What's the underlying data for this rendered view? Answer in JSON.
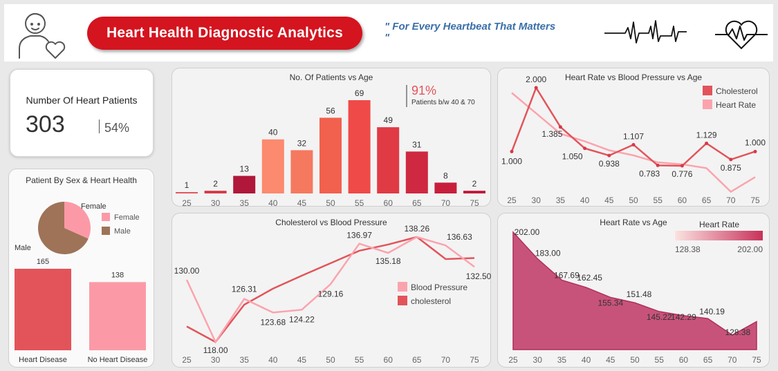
{
  "header": {
    "title": "Heart Health Diagnostic Analytics",
    "tagline": "\" For Every Heartbeat That Matters",
    "tagline_quote": "\""
  },
  "kpi": {
    "label": "Number Of Heart Patients",
    "value": "303",
    "percent": "54%"
  },
  "sex_panel": {
    "title": "Patient By Sex & Heart Health",
    "legend": [
      "Female",
      "Male"
    ],
    "pie_labels": [
      "Female",
      "Male"
    ]
  },
  "colors": {
    "accent": "#d4141f",
    "female": "#fb9aa6",
    "male": "#9e7358",
    "disease": "#e2545a",
    "nodisease": "#fb9aa6"
  },
  "chart_data": [
    {
      "type": "pie",
      "title": "Patient By Sex & Heart Health",
      "labels": [
        "Female",
        "Male"
      ],
      "values": [
        96,
        207
      ]
    },
    {
      "type": "bar",
      "categories": [
        "Heart Disease",
        "No Heart Disease"
      ],
      "values": [
        165,
        138
      ]
    },
    {
      "type": "bar",
      "title": "No. Of Patients vs Age",
      "categories": [
        "25",
        "30",
        "35",
        "40",
        "45",
        "50",
        "55",
        "60",
        "65",
        "70",
        "75"
      ],
      "values": [
        1,
        2,
        13,
        40,
        32,
        56,
        69,
        49,
        31,
        8,
        2
      ],
      "annotation": {
        "value": "91%",
        "text": "Patients b/w 40 & 70"
      }
    },
    {
      "type": "line",
      "title": "Heart Rate vs Blood Pressure vs Age",
      "x": [
        "25",
        "30",
        "35",
        "40",
        "45",
        "50",
        "55",
        "60",
        "65",
        "70",
        "75"
      ],
      "series": [
        {
          "name": "Cholesterol",
          "values": [
            1.0,
            2.0,
            1.385,
            1.05,
            0.938,
            1.107,
            0.783,
            0.776,
            1.129,
            0.875,
            1.0
          ],
          "labels": [
            "1.000",
            "2.000",
            "1.385",
            "1.050",
            "0.938",
            "1.107",
            "0.783",
            "0.776",
            "1.129",
            "0.875",
            "1.000"
          ]
        },
        {
          "name": "Heart Rate",
          "values": [
            1.92,
            1.6,
            1.28,
            1.16,
            1.02,
            0.94,
            0.83,
            0.8,
            0.74,
            0.37,
            0.6
          ]
        }
      ],
      "legend": "top-right"
    },
    {
      "type": "line",
      "title": "Cholesterol vs Blood Pressure",
      "x": [
        "25",
        "30",
        "35",
        "40",
        "45",
        "50",
        "55",
        "60",
        "65",
        "70",
        "75"
      ],
      "series": [
        {
          "name": "Blood Pressure",
          "values": [
            130.0,
            118.0,
            126.31,
            123.68,
            124.22,
            129.16,
            136.97,
            135.18,
            138.26,
            136.63,
            132.5
          ],
          "labels": [
            "130.00",
            "118.00",
            "126.31",
            "123.68",
            "124.22",
            "129.16",
            "136.97",
            "135.18",
            "138.26",
            "136.63",
            "132.50"
          ]
        },
        {
          "name": "cholesterol",
          "values": [
            121.0,
            118.0,
            125.2,
            128.3,
            130.8,
            133.2,
            135.6,
            136.8,
            138.26,
            134.0,
            134.2
          ]
        }
      ],
      "legend": "right"
    },
    {
      "type": "area",
      "title": "Heart Rate vs Age",
      "x": [
        "25",
        "30",
        "35",
        "40",
        "45",
        "50",
        "55",
        "60",
        "65",
        "70",
        "75"
      ],
      "values": [
        202.0,
        183.0,
        167.69,
        162.45,
        155.34,
        151.48,
        145.22,
        142.29,
        140.19,
        128.38,
        138.0
      ],
      "labels": [
        "202.00",
        "183.00",
        "167.69",
        "162.45",
        "155.34",
        "151.48",
        "145.22",
        "142.29",
        "140.19",
        "128.38",
        ""
      ],
      "legend": {
        "title": "Heart Rate",
        "min": "128.38",
        "max": "202.00"
      }
    }
  ]
}
